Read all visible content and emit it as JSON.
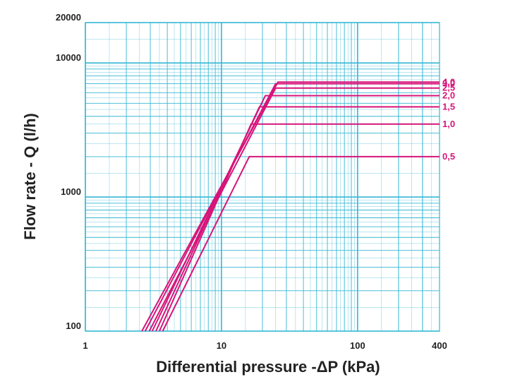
{
  "colors": {
    "grid": "#35b7d4",
    "series": "#d6157a",
    "text": "#222222",
    "background": "#ffffff"
  },
  "chart_data": {
    "type": "line",
    "title": "",
    "xlabel": "Differential pressure -ΔP (kPa)",
    "ylabel": "Flow rate - Q (l/h)",
    "xscale": "log",
    "yscale": "log",
    "xlim": [
      1,
      400
    ],
    "ylim": [
      100,
      20000
    ],
    "grid": true,
    "x_tick_labels": [
      "1",
      "10",
      "100",
      "400"
    ],
    "x_tick_values": [
      1,
      10,
      100,
      400
    ],
    "y_tick_labels": [
      "100",
      "1000",
      "10000",
      "20000"
    ],
    "y_tick_values": [
      100,
      1000,
      10000,
      20000
    ],
    "series": [
      {
        "name": "4,0",
        "points": [
          [
            2.6,
            100
          ],
          [
            26,
            7200
          ],
          [
            400,
            7200
          ]
        ]
      },
      {
        "name": "3,0",
        "points": [
          [
            2.75,
            100
          ],
          [
            25,
            7000
          ],
          [
            400,
            7000
          ]
        ]
      },
      {
        "name": "2,5",
        "points": [
          [
            2.95,
            100
          ],
          [
            25,
            6500
          ],
          [
            400,
            6500
          ]
        ]
      },
      {
        "name": "2,0",
        "points": [
          [
            3.1,
            100
          ],
          [
            21,
            5700
          ],
          [
            400,
            5700
          ]
        ]
      },
      {
        "name": "1,5",
        "points": [
          [
            3.3,
            100
          ],
          [
            19,
            4700
          ],
          [
            400,
            4700
          ]
        ]
      },
      {
        "name": "1,0",
        "points": [
          [
            3.5,
            100
          ],
          [
            16.5,
            3500
          ],
          [
            400,
            3500
          ]
        ]
      },
      {
        "name": "0,5",
        "points": [
          [
            3.7,
            100
          ],
          [
            16,
            2000
          ],
          [
            400,
            2000
          ]
        ]
      }
    ]
  }
}
